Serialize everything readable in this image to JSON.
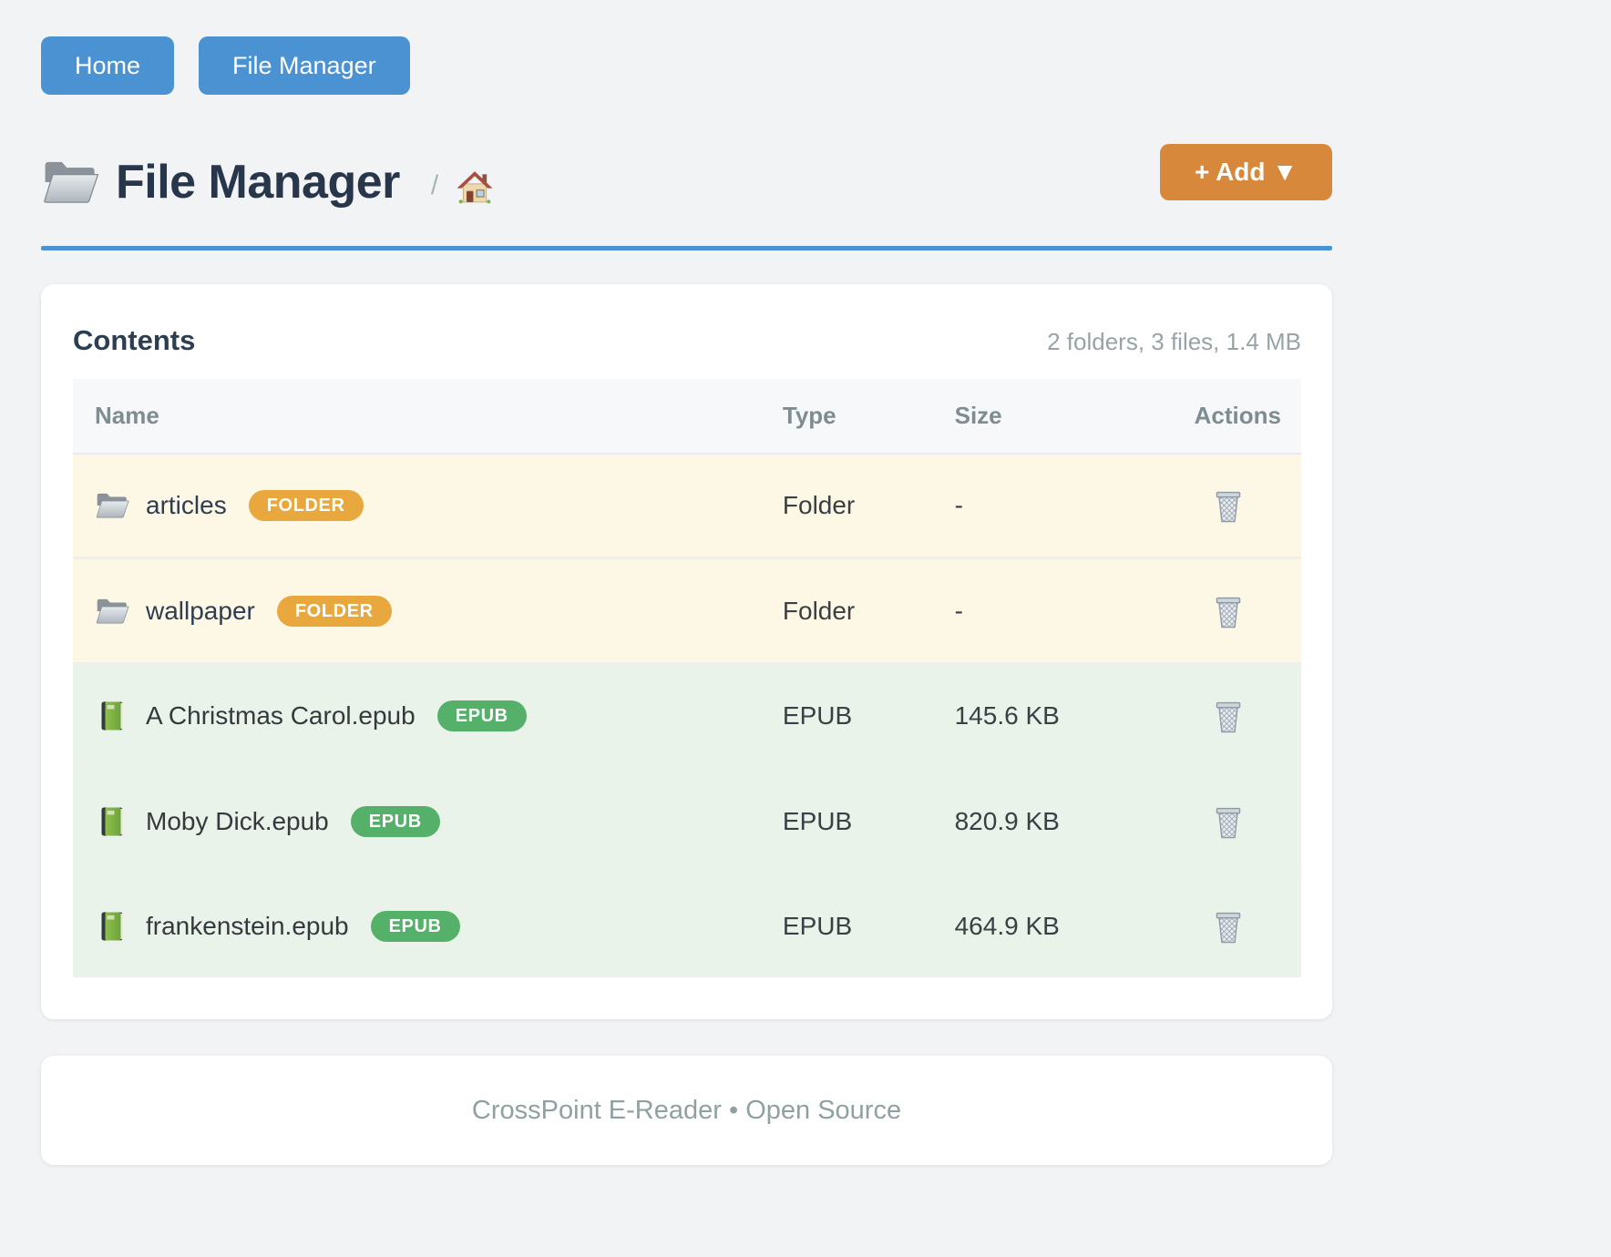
{
  "nav": {
    "home_label": "Home",
    "file_manager_label": "File Manager"
  },
  "header": {
    "title": "File Manager",
    "title_icon": "folder-icon",
    "breadcrumb_separator": "/",
    "breadcrumb_home_icon": "house-icon",
    "add_button_label": "+ Add ▼"
  },
  "contents": {
    "title": "Contents",
    "summary": "2 folders, 3 files, 1.4 MB",
    "columns": [
      "Name",
      "Type",
      "Size",
      "Actions"
    ],
    "rows": [
      {
        "name": "articles",
        "badge": "FOLDER",
        "type": "Folder",
        "size": "-",
        "kind": "folder",
        "icon": "folder-icon",
        "action_icon": "trash-icon"
      },
      {
        "name": "wallpaper",
        "badge": "FOLDER",
        "type": "Folder",
        "size": "-",
        "kind": "folder",
        "icon": "folder-icon",
        "action_icon": "trash-icon"
      },
      {
        "name": "A Christmas Carol.epub",
        "badge": "EPUB",
        "type": "EPUB",
        "size": "145.6 KB",
        "kind": "epub",
        "icon": "book-icon",
        "action_icon": "trash-icon"
      },
      {
        "name": "Moby Dick.epub",
        "badge": "EPUB",
        "type": "EPUB",
        "size": "820.9 KB",
        "kind": "epub",
        "icon": "book-icon",
        "action_icon": "trash-icon"
      },
      {
        "name": "frankenstein.epub",
        "badge": "EPUB",
        "type": "EPUB",
        "size": "464.9 KB",
        "kind": "epub",
        "icon": "book-icon",
        "action_icon": "trash-icon"
      }
    ]
  },
  "footer": {
    "text": "CrossPoint E-Reader • Open Source"
  },
  "colors": {
    "primary_blue": "#4b92d2",
    "accent_orange": "#d8883b",
    "folder_badge": "#e9a83e",
    "epub_badge": "#55b169",
    "folder_row_bg": "#fdf7e5",
    "epub_row_bg": "#e9f3ea"
  }
}
